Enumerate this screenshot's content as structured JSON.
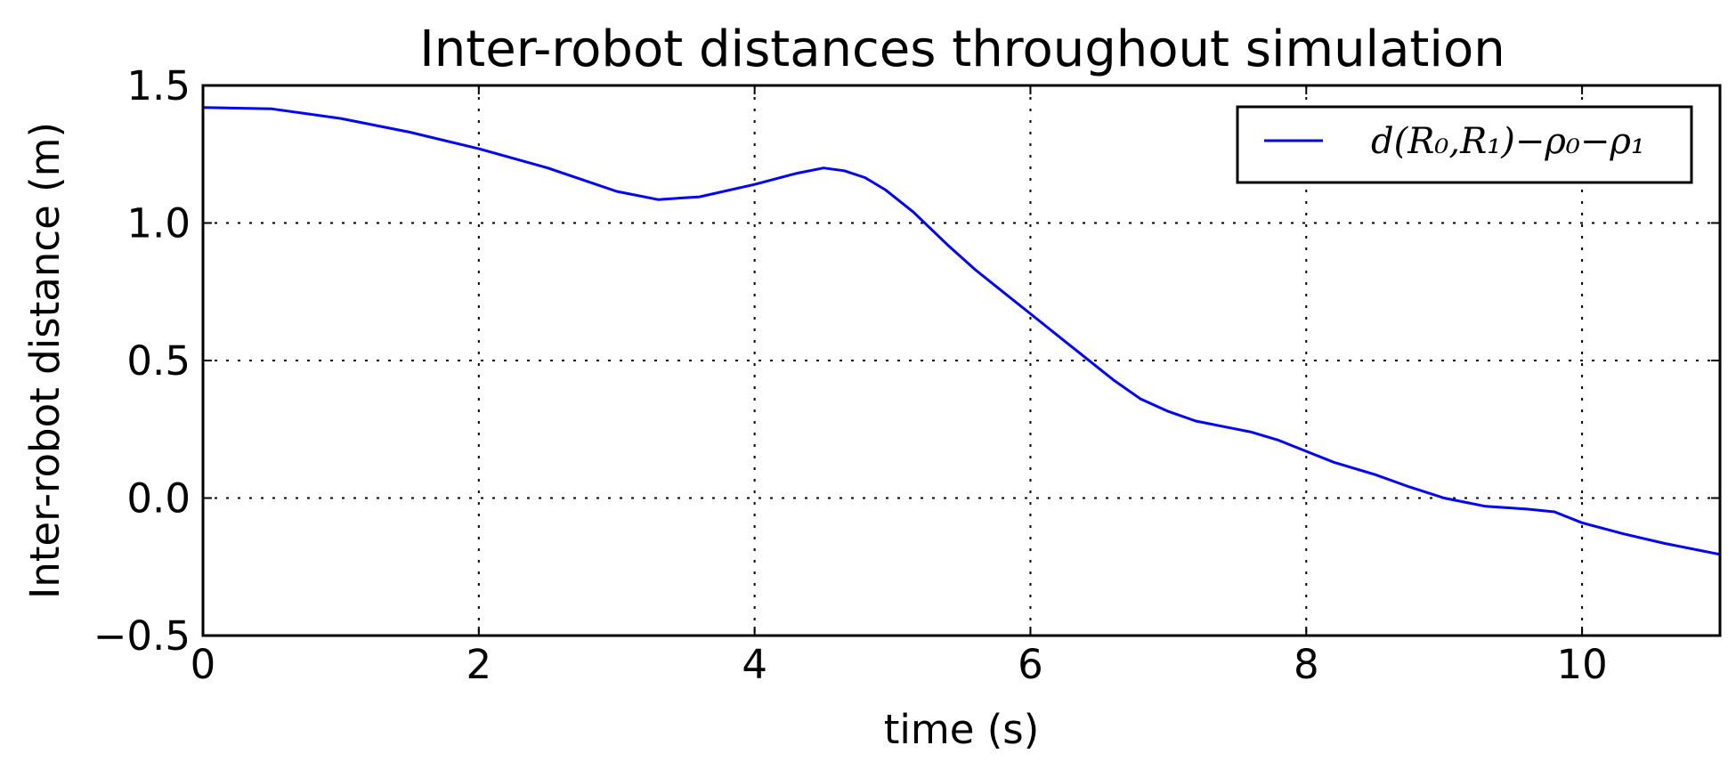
{
  "chart_data": {
    "type": "line",
    "title": "Inter-robot distances throughout simulation",
    "xlabel": "time (s)",
    "ylabel": "Inter-robot distance (m)",
    "xlim": [
      0,
      11
    ],
    "ylim": [
      -0.5,
      1.5
    ],
    "xticks": [
      0,
      2,
      4,
      6,
      8,
      10
    ],
    "xtick_labels": [
      "0",
      "2",
      "4",
      "6",
      "8",
      "10"
    ],
    "yticks": [
      -0.5,
      0.0,
      0.5,
      1.0,
      1.5
    ],
    "ytick_labels": [
      "−0.5",
      "0.0",
      "0.5",
      "1.0",
      "1.5"
    ],
    "grid": true,
    "legend_position": "top-right",
    "series": [
      {
        "name": "d(R₀,R₁)−ρ₀−ρ₁",
        "color": "#0000ff",
        "x": [
          0.0,
          0.5,
          1.0,
          1.5,
          2.0,
          2.5,
          3.0,
          3.3,
          3.6,
          4.0,
          4.3,
          4.5,
          4.65,
          4.8,
          4.95,
          5.15,
          5.4,
          5.6,
          5.8,
          6.0,
          6.3,
          6.6,
          6.8,
          7.0,
          7.2,
          7.4,
          7.6,
          7.8,
          8.0,
          8.2,
          8.5,
          8.75,
          9.0,
          9.3,
          9.6,
          9.8,
          10.0,
          10.3,
          10.6,
          11.0
        ],
        "y": [
          1.42,
          1.415,
          1.38,
          1.33,
          1.27,
          1.2,
          1.115,
          1.085,
          1.095,
          1.14,
          1.18,
          1.2,
          1.19,
          1.165,
          1.12,
          1.04,
          0.92,
          0.83,
          0.75,
          0.67,
          0.55,
          0.43,
          0.36,
          0.315,
          0.28,
          0.26,
          0.24,
          0.21,
          0.17,
          0.13,
          0.085,
          0.04,
          0.0,
          -0.03,
          -0.04,
          -0.05,
          -0.09,
          -0.13,
          -0.165,
          -0.205
        ]
      }
    ]
  }
}
